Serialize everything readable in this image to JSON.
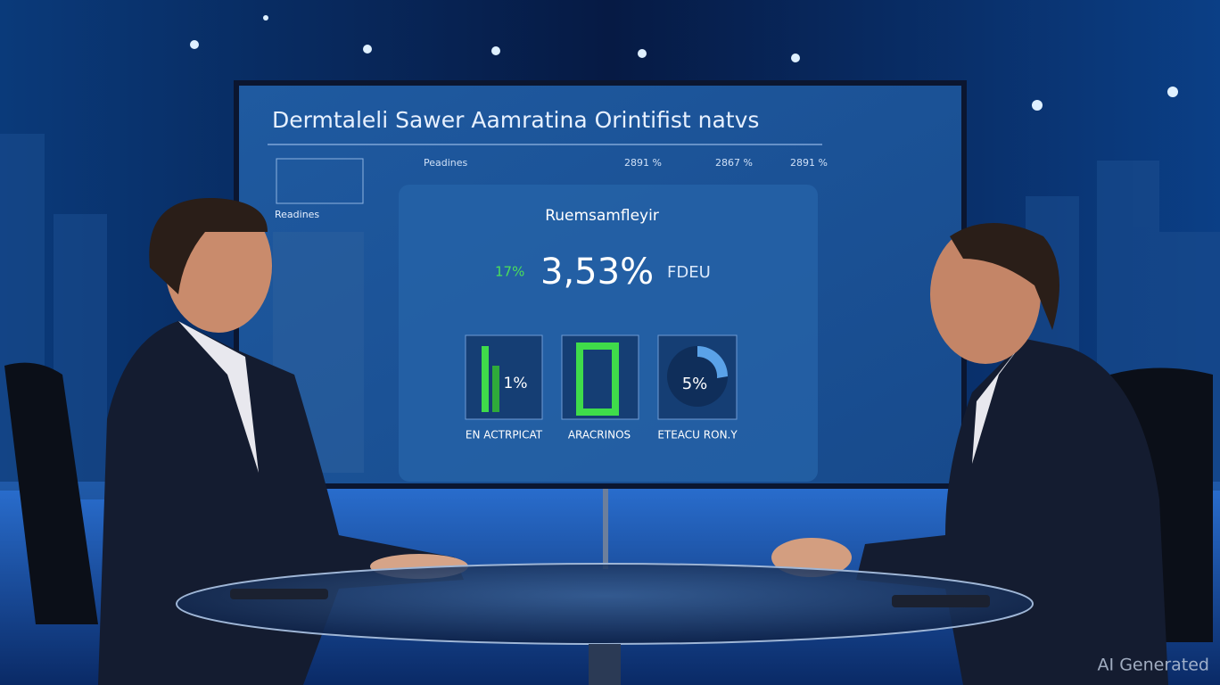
{
  "screen": {
    "title": "Dermtaleli Sawer Aamratina Orintifist natvs",
    "header_row": [
      "Peadines",
      "2891 %",
      "2867 %",
      "2891 %"
    ],
    "side_label": "Readines",
    "panel": {
      "heading": "Ruemsamfleyir",
      "small_stat": "17%",
      "main_stat": "3,53%",
      "stat_unit": "FDEU",
      "tiles": [
        {
          "value": "1%",
          "label": "EN ACTRPICAT"
        },
        {
          "value": "",
          "label": "ARACRINOS"
        },
        {
          "value": "5%",
          "label": "ETEACU RON.Y"
        }
      ]
    }
  },
  "watermark": "AI Generated"
}
